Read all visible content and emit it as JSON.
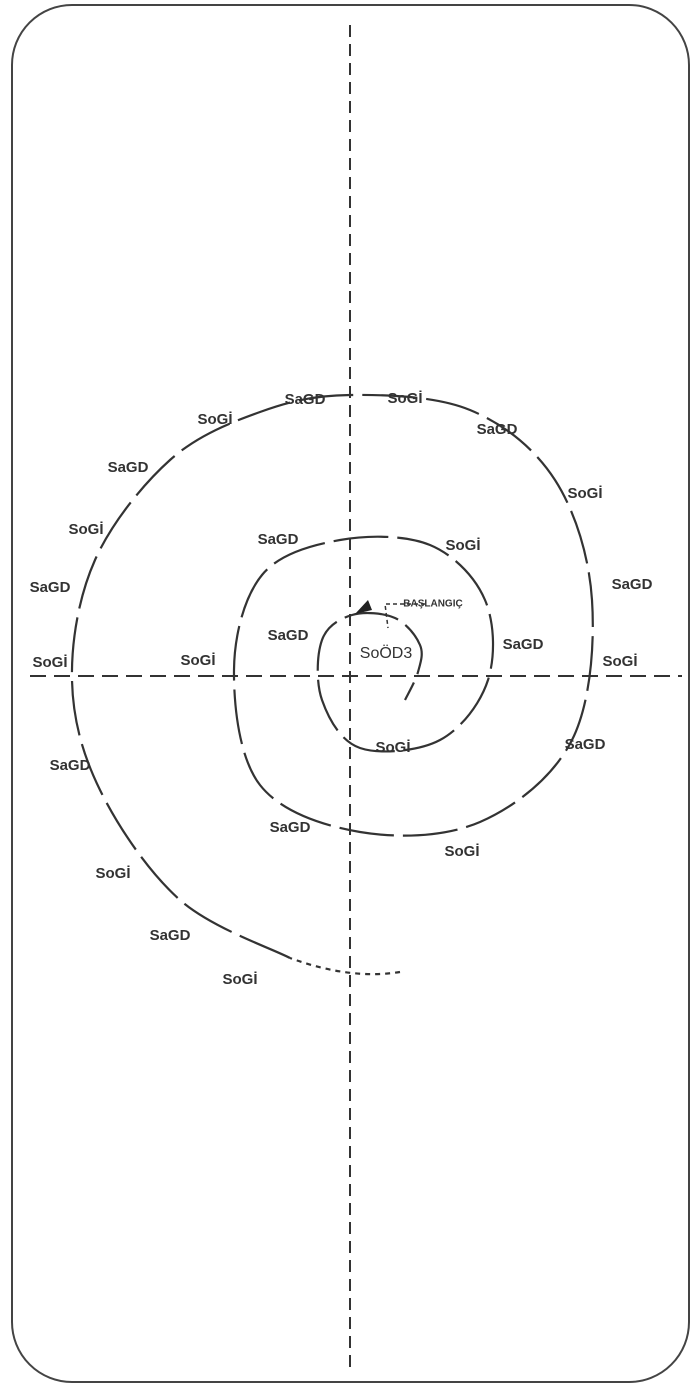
{
  "diagram": {
    "start_label": "BAŞLANGIÇ",
    "center_label": "SoÖD3",
    "labels": [
      "SaGD",
      "SoGİ",
      "SaGD",
      "SoGİ",
      "SaGD",
      "SoGİ",
      "SaGD",
      "SoGİ",
      "SaGD",
      "SoGİ",
      "SaGD",
      "SoGİ",
      "SaGD",
      "SoGİ",
      "SaGD",
      "SoGİ",
      "SaGD",
      "SoGİ",
      "SaGD",
      "SoGİ",
      "SaGD",
      "SoGİ",
      "SaGD",
      "SoGİ"
    ]
  }
}
